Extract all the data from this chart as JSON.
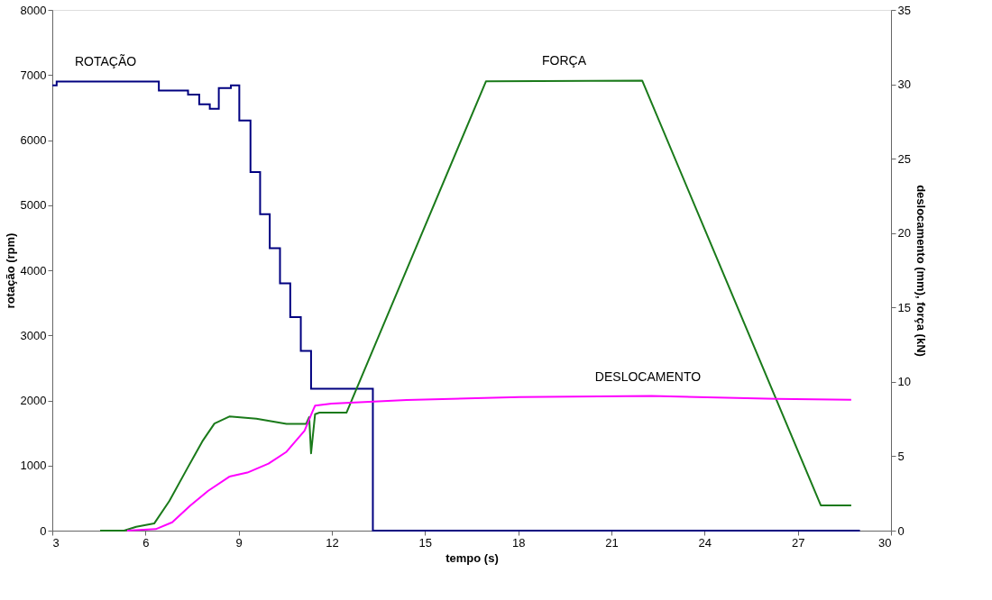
{
  "chart_data": {
    "type": "line",
    "xlabel": "tempo (s)",
    "ylabel": "rotação (rpm)",
    "y2label": "deslocamento (mm), força (kN)",
    "xlim": [
      3,
      30
    ],
    "xticks": [
      3,
      6,
      9,
      12,
      15,
      18,
      21,
      24,
      27,
      30
    ],
    "ylim": [
      0,
      8000
    ],
    "yticks": [
      0,
      1000,
      2000,
      3000,
      4000,
      5000,
      6000,
      7000,
      8000
    ],
    "y2lim": [
      0,
      35
    ],
    "y2ticks": [
      0,
      5,
      10,
      15,
      20,
      25,
      30,
      35
    ],
    "grid": false,
    "series": [
      {
        "name": "ROTAÇÃO",
        "type": "step",
        "axis": "y",
        "color": "#000080",
        "x": [
          3.0,
          3.14,
          6.43,
          7.37,
          7.73,
          8.07,
          8.36,
          8.75,
          9.02,
          9.38,
          9.69,
          10.0,
          10.33,
          10.66,
          11.0,
          11.33,
          13.32,
          29.0
        ],
        "values": [
          6840,
          6900,
          6760,
          6700,
          6550,
          6480,
          6800,
          6840,
          6300,
          5510,
          4860,
          4340,
          3800,
          3280,
          2760,
          2180,
          0,
          0
        ]
      },
      {
        "name": "FORÇA",
        "axis": "y2",
        "color": "#1a7a1a",
        "x": [
          4.54,
          5.31,
          5.7,
          6.28,
          6.77,
          7.35,
          7.83,
          8.22,
          8.7,
          9.57,
          10.54,
          11.17,
          11.27,
          11.33,
          11.46,
          11.6,
          12.47,
          16.96,
          21.99,
          27.74,
          28.72
        ],
        "values": [
          0,
          0,
          0.26,
          0.48,
          2.0,
          4.2,
          6.0,
          7.2,
          7.67,
          7.53,
          7.17,
          7.17,
          7.63,
          5.2,
          7.83,
          7.93,
          7.93,
          30.2,
          30.25,
          1.7,
          1.7
        ]
      },
      {
        "name": "DESLOCAMENTO",
        "axis": "y2",
        "color": "#ff00ff",
        "x": [
          5.41,
          6.33,
          6.86,
          7.44,
          8.02,
          8.7,
          9.28,
          9.96,
          10.54,
          11.12,
          11.36,
          11.46,
          11.99,
          14.41,
          18.03,
          22.29,
          26.32,
          28.72
        ],
        "values": [
          0,
          0.1,
          0.56,
          1.68,
          2.68,
          3.63,
          3.9,
          4.5,
          5.3,
          6.72,
          7.93,
          8.4,
          8.54,
          8.78,
          8.98,
          9.05,
          8.86,
          8.8
        ]
      }
    ]
  }
}
